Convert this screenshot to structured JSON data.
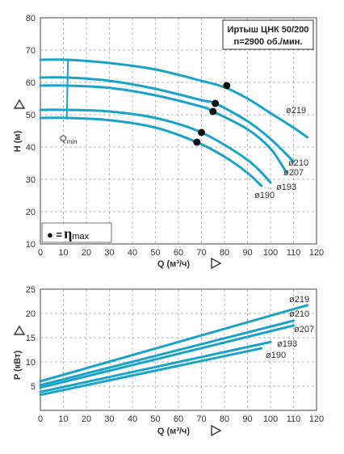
{
  "chart_data": [
    {
      "type": "line",
      "title_lines": [
        "Иртыш ЦНК 50/200",
        "n=2900 об./мин."
      ],
      "xlabel": "Q (м³/ч)",
      "ylabel": "H (м)",
      "xlim": [
        0,
        120
      ],
      "ylim": [
        10,
        80
      ],
      "xticks": [
        "0",
        "10",
        "20",
        "30",
        "40",
        "50",
        "60",
        "70",
        "80",
        "90",
        "100",
        "110",
        "120"
      ],
      "yticks": [
        "10",
        "20",
        "30",
        "40",
        "50",
        "60",
        "70",
        "80"
      ],
      "grid": "dashed",
      "qmin_label": "Q",
      "qmin_subscript": "min",
      "qmin_x": 12,
      "legend_prefix": "● =",
      "legend_symbol": "η",
      "legend_subscript": "max",
      "series": [
        {
          "name": "ø219",
          "x": [
            0,
            12,
            30,
            50,
            70,
            80,
            90,
            100,
            110,
            116
          ],
          "y": [
            67,
            67,
            66,
            64,
            60.5,
            58.5,
            55,
            50.5,
            46,
            43
          ],
          "eta_max": [
            81,
            59
          ]
        },
        {
          "name": "ø210",
          "x": [
            0,
            12,
            30,
            50,
            70,
            76,
            90,
            100,
            110
          ],
          "y": [
            61.5,
            61.5,
            60.5,
            58,
            54.5,
            53.5,
            48,
            42.5,
            35.5
          ],
          "eta_max": [
            76,
            53.5
          ]
        },
        {
          "name": "ø207",
          "x": [
            0,
            12,
            30,
            50,
            70,
            75,
            90,
            100,
            107
          ],
          "y": [
            59,
            59,
            58.3,
            56,
            52.5,
            51,
            45.5,
            39.5,
            32
          ],
          "eta_max": [
            75,
            51
          ]
        },
        {
          "name": "ø193",
          "x": [
            0,
            12,
            30,
            50,
            70,
            90,
            100
          ],
          "y": [
            51.5,
            51.5,
            51,
            49,
            44.5,
            36,
            29
          ],
          "eta_max": [
            70,
            44.5
          ]
        },
        {
          "name": "ø190",
          "x": [
            0,
            12,
            30,
            50,
            68,
            80,
            90,
            96
          ],
          "y": [
            49,
            49,
            48.3,
            46,
            41.5,
            37,
            32,
            28
          ],
          "eta_max": [
            68,
            41.5
          ]
        }
      ],
      "curve_label_text": [
        "ø219",
        "ø210",
        "ø207",
        "ø193",
        "ø190"
      ]
    },
    {
      "type": "line",
      "xlabel": "Q (м³/ч)",
      "ylabel": "P (кВт)",
      "xlim": [
        0,
        120
      ],
      "ylim": [
        0,
        25
      ],
      "xticks": [
        "0",
        "10",
        "20",
        "30",
        "40",
        "50",
        "60",
        "70",
        "80",
        "90",
        "100",
        "110",
        "120"
      ],
      "yticks": [
        "5",
        "10",
        "15",
        "20",
        "25"
      ],
      "grid": "dashed",
      "series": [
        {
          "name": "ø219",
          "x": [
            0,
            116
          ],
          "y": [
            6,
            21.7
          ]
        },
        {
          "name": "ø210",
          "x": [
            0,
            110
          ],
          "y": [
            5.2,
            18.5
          ]
        },
        {
          "name": "ø207",
          "x": [
            0,
            110
          ],
          "y": [
            4.7,
            17.5
          ]
        },
        {
          "name": "ø193",
          "x": [
            0,
            100
          ],
          "y": [
            3.8,
            14.1
          ]
        },
        {
          "name": "ø190",
          "x": [
            0,
            96
          ],
          "y": [
            3.2,
            12.8
          ]
        }
      ],
      "curve_label_text": [
        "ø219",
        "ø210",
        "ø207",
        "ø193",
        "ø190"
      ]
    }
  ],
  "colors": {
    "curve": "#1aa3c8",
    "grid": "#9a9a9a",
    "frame": "#444444",
    "marker": "#111111"
  }
}
